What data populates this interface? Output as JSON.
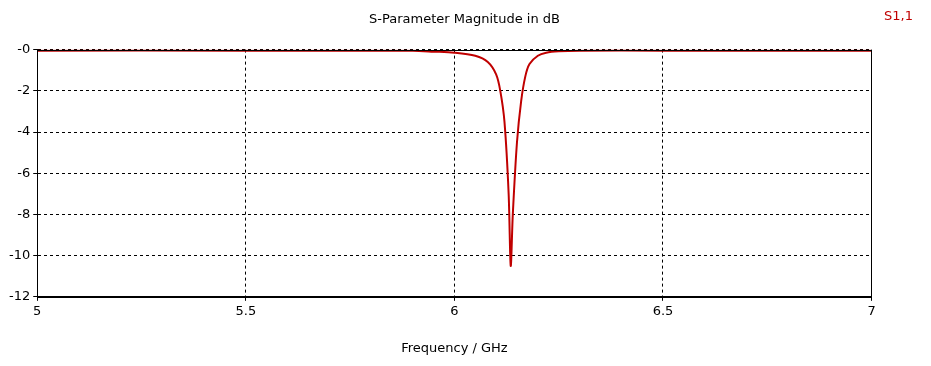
{
  "chart_data": {
    "type": "line",
    "title": "S-Parameter Magnitude in dB",
    "x_label": "Frequency / GHz",
    "x": [
      5.0,
      5.5,
      5.9,
      5.95,
      6.0,
      6.05,
      6.08,
      6.1,
      6.11,
      6.12,
      6.13,
      6.135,
      6.14,
      6.15,
      6.16,
      6.17,
      6.18,
      6.2,
      6.22,
      6.25,
      6.3,
      6.5,
      7.0
    ],
    "series": [
      {
        "name": "S1,1",
        "color": "#c00000",
        "values": [
          -0.05,
          -0.05,
          -0.06,
          -0.1,
          -0.15,
          -0.3,
          -0.6,
          -1.2,
          -2.0,
          -3.5,
          -7.0,
          -10.5,
          -8.0,
          -4.5,
          -2.5,
          -1.3,
          -0.7,
          -0.3,
          -0.15,
          -0.08,
          -0.05,
          -0.05,
          -0.05
        ]
      }
    ],
    "xlim": [
      5,
      7
    ],
    "xticks": [
      5,
      5.5,
      6,
      6.5,
      7
    ],
    "ylim": [
      -12,
      0
    ],
    "yticks": [
      {
        "value": 0,
        "label": "-0"
      },
      -2,
      -4,
      -6,
      -8,
      -10,
      -12
    ],
    "grid": true,
    "legend": "right"
  }
}
